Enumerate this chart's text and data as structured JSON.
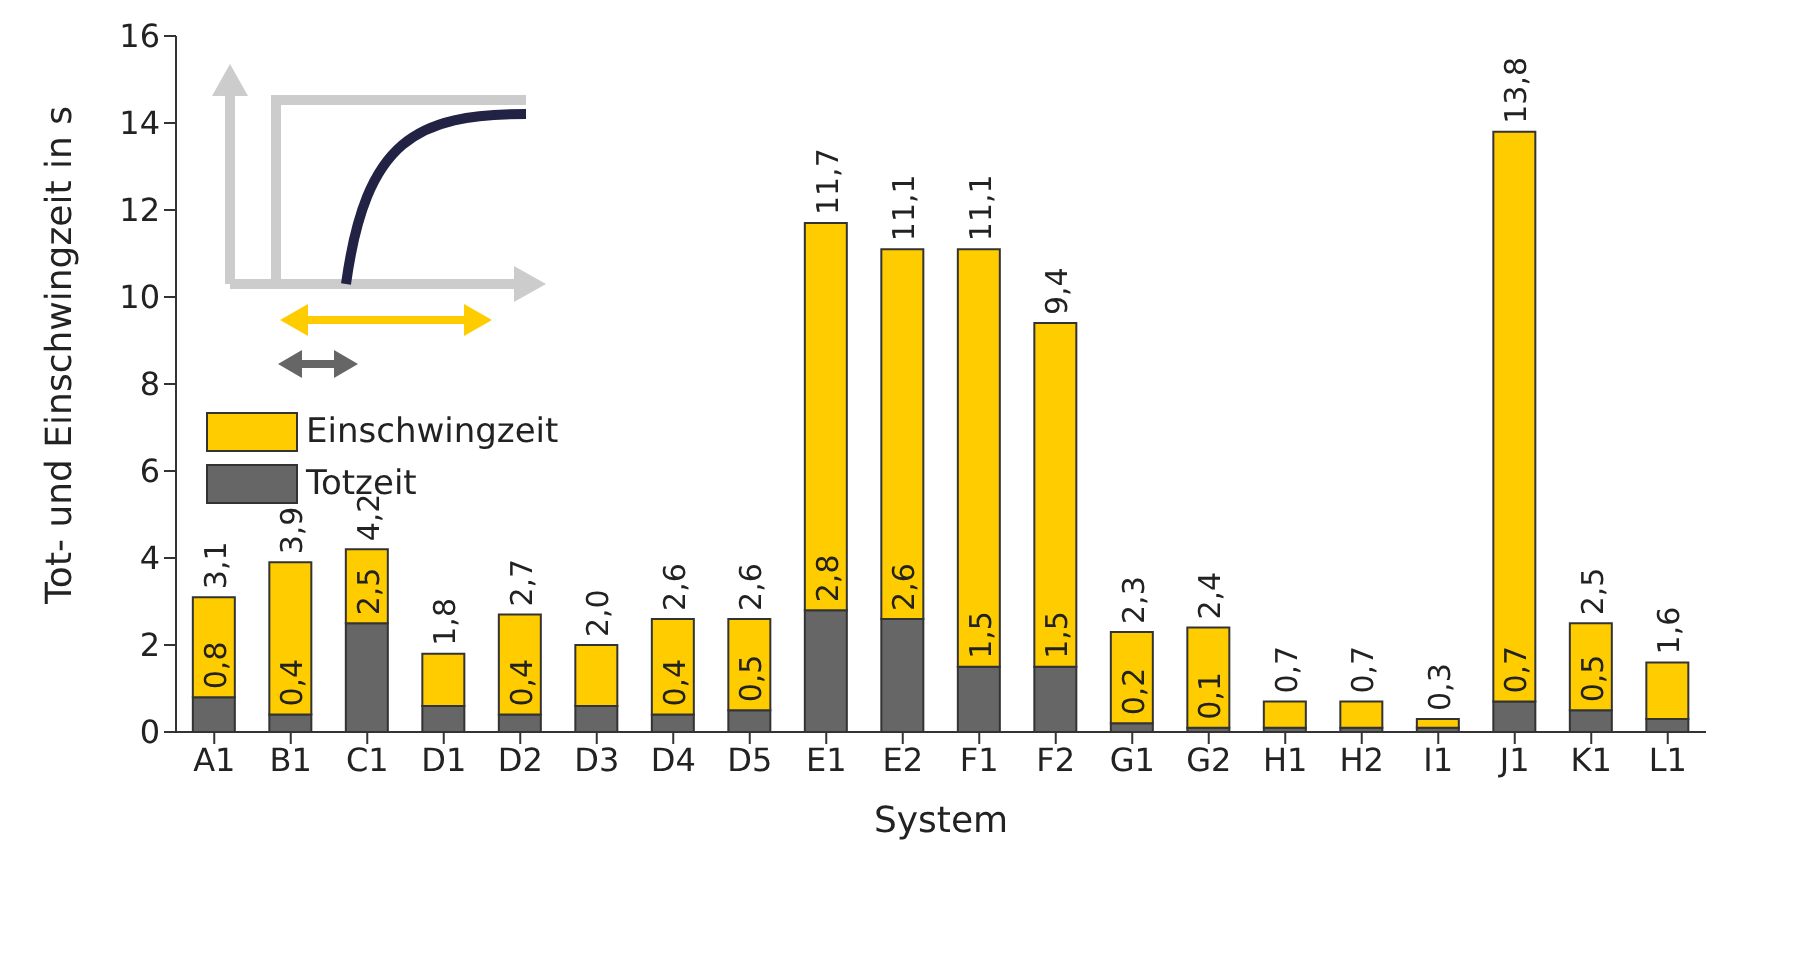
{
  "chart_data": {
    "type": "bar",
    "stacked": true,
    "xlabel": "System",
    "ylabel": "Tot- und Einschwingzeit in s",
    "categories": [
      "A1",
      "B1",
      "C1",
      "D1",
      "D2",
      "D3",
      "D4",
      "D5",
      "E1",
      "E2",
      "F1",
      "F2",
      "G1",
      "G2",
      "H1",
      "H2",
      "I1",
      "J1",
      "K1",
      "L1"
    ],
    "series": [
      {
        "name": "Totzeit",
        "color": "#666666",
        "values": [
          0.8,
          0.4,
          2.5,
          0.6,
          0.4,
          0.6,
          0.4,
          0.5,
          2.8,
          2.6,
          1.5,
          1.5,
          0.2,
          0.1,
          0.1,
          0.1,
          0.1,
          0.7,
          0.5,
          0.3
        ],
        "value_labels": [
          "0,8",
          "0,4",
          "2,5",
          null,
          "0,4",
          null,
          "0,4",
          "0,5",
          "2,8",
          "2,6",
          "1,5",
          "1,5",
          "0,2",
          "0,1",
          null,
          null,
          null,
          "0,7",
          "0,5",
          null
        ]
      },
      {
        "name": "Einschwingzeit",
        "color": "#ffcc00",
        "values": [
          2.3,
          3.5,
          1.7,
          1.2,
          2.3,
          1.4,
          2.2,
          2.1,
          8.9,
          8.5,
          9.6,
          7.9,
          2.1,
          2.3,
          0.6,
          0.6,
          0.2,
          13.1,
          2.0,
          1.3
        ]
      }
    ],
    "totals": [
      "3,1",
      "3,9",
      "4,2",
      "1,8",
      "2,7",
      "2,0",
      "2,6",
      "2,6",
      "11,7",
      "11,1",
      "11,1",
      "9,4",
      "2,3",
      "2,4",
      "0,7",
      "0,7",
      "0,3",
      "13,8",
      "2,5",
      "1,6"
    ],
    "ylim": [
      0,
      16
    ],
    "yticks": [
      0,
      2,
      4,
      6,
      8,
      10,
      12,
      14,
      16
    ],
    "legend": "left"
  }
}
